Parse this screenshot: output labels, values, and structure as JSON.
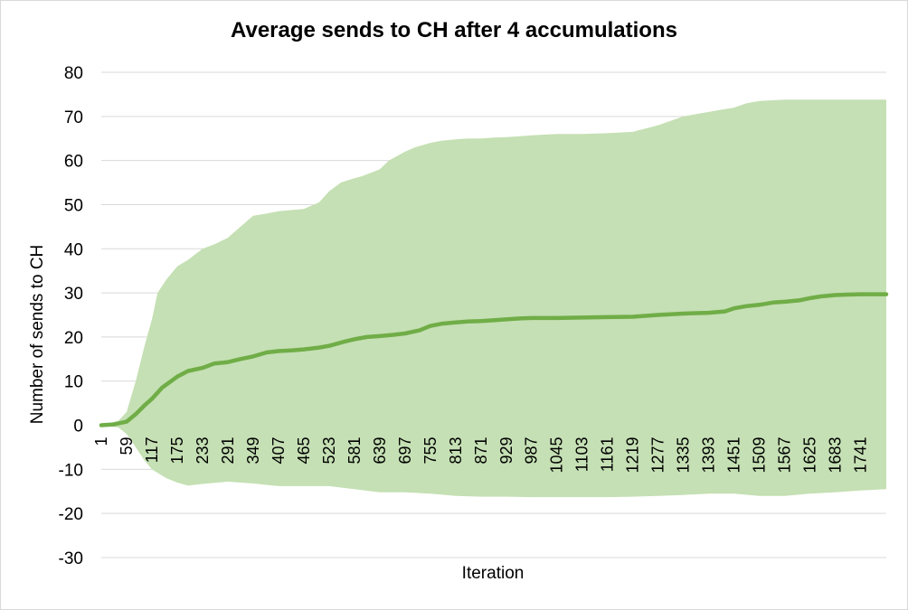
{
  "chart_data": {
    "type": "area",
    "title": "Average sends to CH after 4 accumulations",
    "xlabel": "Iteration",
    "ylabel": "Number of sends  to CH",
    "ylim": [
      -30,
      80
    ],
    "yticks": [
      80,
      70,
      60,
      50,
      40,
      30,
      20,
      10,
      0,
      -10,
      -20,
      -30
    ],
    "xlim": [
      1,
      1800
    ],
    "xticks": [
      "1",
      "59",
      "117",
      "175",
      "233",
      "291",
      "349",
      "407",
      "465",
      "523",
      "581",
      "639",
      "697",
      "755",
      "813",
      "871",
      "929",
      "987",
      "1045",
      "1103",
      "1161",
      "1219",
      "1277",
      "1335",
      "1393",
      "1451",
      "1509",
      "1567",
      "1625",
      "1683",
      "1741"
    ],
    "grid": true,
    "colors": {
      "band": "#c5e0b4",
      "line": "#70ad47",
      "grid": "#d9d9d9"
    },
    "series": [
      {
        "role": "average line",
        "x": [
          1,
          30,
          59,
          80,
          100,
          117,
          140,
          175,
          200,
          233,
          260,
          291,
          320,
          349,
          380,
          407,
          440,
          465,
          500,
          523,
          560,
          581,
          610,
          639,
          670,
          697,
          730,
          755,
          780,
          813,
          840,
          871,
          900,
          929,
          960,
          987,
          1045,
          1103,
          1161,
          1219,
          1277,
          1335,
          1393,
          1430,
          1451,
          1480,
          1509,
          1540,
          1567,
          1600,
          1625,
          1650,
          1683,
          1710,
          1741,
          1800
        ],
        "y": [
          0,
          0.2,
          0.8,
          2.5,
          4.5,
          6.0,
          8.5,
          11.0,
          12.3,
          13.0,
          14.0,
          14.3,
          15.0,
          15.6,
          16.5,
          16.8,
          17.0,
          17.2,
          17.6,
          18.0,
          19.0,
          19.5,
          20.0,
          20.2,
          20.5,
          20.8,
          21.5,
          22.5,
          23.0,
          23.3,
          23.5,
          23.6,
          23.8,
          24.0,
          24.2,
          24.3,
          24.3,
          24.4,
          24.5,
          24.6,
          25.0,
          25.3,
          25.5,
          25.8,
          26.5,
          27.0,
          27.3,
          27.8,
          28.0,
          28.3,
          28.8,
          29.2,
          29.5,
          29.6,
          29.7,
          29.7
        ]
      },
      {
        "role": "upper band",
        "x": [
          1,
          40,
          59,
          80,
          100,
          117,
          130,
          150,
          175,
          200,
          233,
          260,
          291,
          320,
          349,
          380,
          407,
          440,
          465,
          500,
          523,
          550,
          581,
          600,
          639,
          660,
          697,
          720,
          755,
          780,
          813,
          840,
          871,
          900,
          929,
          960,
          987,
          1045,
          1103,
          1161,
          1219,
          1277,
          1335,
          1393,
          1420,
          1451,
          1480,
          1509,
          1567,
          1625,
          1683,
          1741,
          1800
        ],
        "y": [
          0,
          1.0,
          3.0,
          10.0,
          18.0,
          24.0,
          30.0,
          33.0,
          36.0,
          37.5,
          40.0,
          41.0,
          42.5,
          45.0,
          47.5,
          48.0,
          48.5,
          48.8,
          49.0,
          50.5,
          53.0,
          55.0,
          56.0,
          56.5,
          58.0,
          60.0,
          62.0,
          63.0,
          64.0,
          64.5,
          64.8,
          65.0,
          65.0,
          65.2,
          65.3,
          65.5,
          65.7,
          66.0,
          66.0,
          66.2,
          66.5,
          68.0,
          70.0,
          71.0,
          71.5,
          72.0,
          73.0,
          73.5,
          73.8,
          73.8,
          73.8,
          73.8,
          73.8
        ]
      },
      {
        "role": "lower band",
        "x": [
          1,
          40,
          59,
          80,
          100,
          117,
          150,
          175,
          200,
          233,
          291,
          349,
          407,
          465,
          523,
          581,
          639,
          697,
          755,
          813,
          871,
          929,
          987,
          1045,
          1103,
          1161,
          1219,
          1277,
          1335,
          1393,
          1451,
          1509,
          1567,
          1625,
          1683,
          1741,
          1800
        ],
        "y": [
          0,
          -0.5,
          -2.0,
          -5.0,
          -8.0,
          -10.0,
          -12.0,
          -13.0,
          -13.7,
          -13.3,
          -12.8,
          -13.2,
          -13.8,
          -13.8,
          -13.8,
          -14.5,
          -15.2,
          -15.2,
          -15.5,
          -16.0,
          -16.2,
          -16.2,
          -16.3,
          -16.3,
          -16.3,
          -16.3,
          -16.2,
          -16.0,
          -15.8,
          -15.5,
          -15.5,
          -16.0,
          -16.0,
          -15.5,
          -15.2,
          -14.8,
          -14.5
        ]
      }
    ]
  }
}
